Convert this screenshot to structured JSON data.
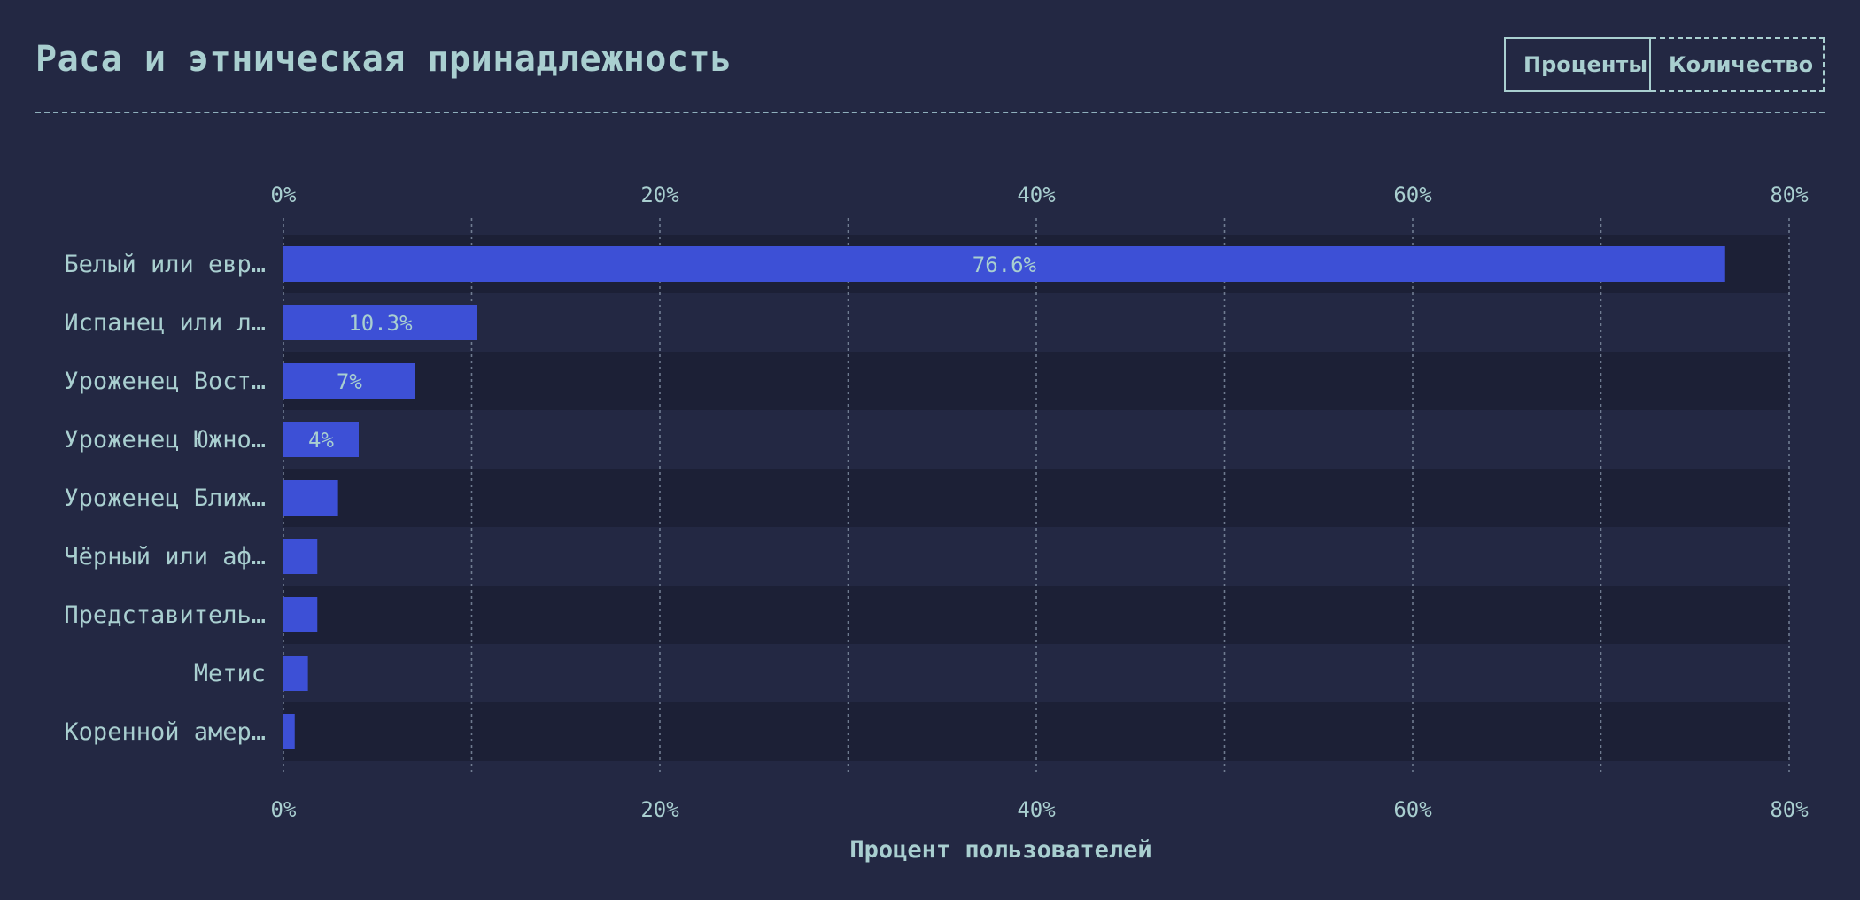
{
  "header": {
    "title": "Раса и этническая принадлежность"
  },
  "toggle": {
    "percent_label": "Проценты",
    "count_label": "Количество",
    "active": "percent"
  },
  "colors": {
    "background": "#232843",
    "row_band_dark": "#1c2036",
    "bar": "#3d50d6",
    "text": "#a9cfd0",
    "bar_label": "#a9cfd0",
    "grid": "#8a98ad"
  },
  "chart_data": {
    "type": "bar",
    "orientation": "horizontal",
    "title": "Раса и этническая принадлежность",
    "xlabel": "Процент пользователей",
    "ylabel": "",
    "xlim": [
      0,
      80
    ],
    "x_ticks": [
      "0%",
      "20%",
      "40%",
      "60%",
      "80%"
    ],
    "grid": true,
    "categories": [
      "Белый или евр…",
      "Испанец или л…",
      "Уроженец Вост…",
      "Уроженец Южно…",
      "Уроженец Ближ…",
      "Чёрный или аф…",
      "Представитель…",
      "Метис",
      "Коренной амер…"
    ],
    "values": [
      76.6,
      10.3,
      7,
      4,
      2.9,
      1.8,
      1.8,
      1.3,
      0.6
    ],
    "data_labels": [
      "76.6%",
      "10.3%",
      "7%",
      "4%",
      "",
      "",
      "",
      "",
      ""
    ]
  }
}
